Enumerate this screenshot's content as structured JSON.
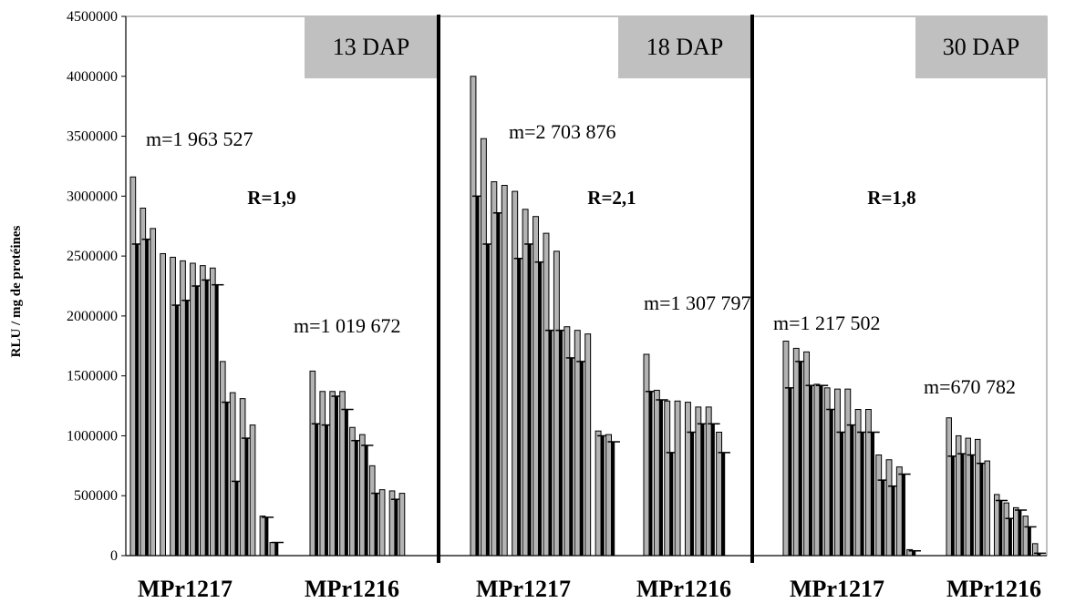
{
  "chart_data": {
    "type": "bar",
    "ylabel": "RLU / mg de protéines",
    "ylim": [
      0,
      4500000
    ],
    "yticks": [
      0,
      500000,
      1000000,
      1500000,
      2000000,
      2500000,
      3000000,
      3500000,
      4000000,
      4500000
    ],
    "colors": {
      "gray_bar": "#b3b3b3",
      "black_bar": "#000000",
      "panel_box": "#c0c0c0"
    },
    "panels": [
      {
        "label": "13 DAP",
        "ratio": "R=1,9",
        "groups": [
          {
            "name": "MPr1217",
            "mean_label": "m=1 963 527",
            "replicates": [
              {
                "a": 3160000,
                "b": 2600000
              },
              {
                "a": 2900000,
                "b": 2640000
              },
              {
                "a": 2730000
              },
              {
                "a": 2520000
              },
              {
                "a": 2490000,
                "b": 2090000
              },
              {
                "a": 2460000,
                "b": 2130000
              },
              {
                "a": 2440000,
                "b": 2250000
              },
              {
                "a": 2420000,
                "b": 2300000
              },
              {
                "a": 2400000,
                "b": 2260000
              },
              {
                "a": 1620000,
                "b": 1280000
              },
              {
                "a": 1360000,
                "b": 620000
              },
              {
                "a": 1310000,
                "b": 980000
              },
              {
                "a": 1090000
              },
              {
                "a": 330000,
                "b": 320000
              },
              {
                "a": 110000,
                "b": 110000
              }
            ]
          },
          {
            "name": "MPr1216",
            "mean_label": "m=1 019 672",
            "replicates": [
              {
                "a": 1540000,
                "b": 1100000
              },
              {
                "a": 1370000,
                "b": 1090000
              },
              {
                "a": 1370000,
                "b": 1330000
              },
              {
                "a": 1370000,
                "b": 1220000
              },
              {
                "a": 1070000,
                "b": 960000
              },
              {
                "a": 1010000,
                "b": 920000
              },
              {
                "a": 750000,
                "b": 520000
              },
              {
                "a": 550000
              },
              {
                "a": 540000,
                "b": 470000
              },
              {
                "a": 520000
              }
            ]
          }
        ]
      },
      {
        "label": "18 DAP",
        "ratio": "R=2,1",
        "groups": [
          {
            "name": "MPr1217",
            "mean_label": "m=2 703 876",
            "replicates": [
              {
                "a": 4000000,
                "b": 3000000
              },
              {
                "a": 3480000,
                "b": 2600000
              },
              {
                "a": 3120000,
                "b": 2860000
              },
              {
                "a": 3090000
              },
              {
                "a": 3040000,
                "b": 2480000
              },
              {
                "a": 2890000,
                "b": 2600000
              },
              {
                "a": 2830000,
                "b": 2450000
              },
              {
                "a": 2690000,
                "b": 1880000
              },
              {
                "a": 2540000,
                "b": 1880000
              },
              {
                "a": 1910000,
                "b": 1650000
              },
              {
                "a": 1880000,
                "b": 1620000
              },
              {
                "a": 1850000
              },
              {
                "a": 1040000,
                "b": 1000000
              },
              {
                "a": 1010000,
                "b": 950000
              }
            ]
          },
          {
            "name": "MPr1216",
            "mean_label": "m=1 307 797",
            "replicates": [
              {
                "a": 1680000,
                "b": 1370000
              },
              {
                "a": 1380000,
                "b": 1300000
              },
              {
                "a": 1290000,
                "b": 860000
              },
              {
                "a": 1290000
              },
              {
                "a": 1280000,
                "b": 1030000
              },
              {
                "a": 1240000,
                "b": 1100000
              },
              {
                "a": 1240000,
                "b": 1100000
              },
              {
                "a": 1030000,
                "b": 860000
              }
            ]
          }
        ]
      },
      {
        "label": "30 DAP",
        "ratio": "R=1,8",
        "groups": [
          {
            "name": "MPr1217",
            "mean_label": "m=1 217 502",
            "replicates": [
              {
                "a": 1790000,
                "b": 1400000
              },
              {
                "a": 1730000,
                "b": 1620000
              },
              {
                "a": 1700000,
                "b": 1420000
              },
              {
                "a": 1430000,
                "b": 1420000
              },
              {
                "a": 1400000,
                "b": 1220000
              },
              {
                "a": 1390000,
                "b": 1030000
              },
              {
                "a": 1390000,
                "b": 1090000
              },
              {
                "a": 1220000,
                "b": 1030000
              },
              {
                "a": 1220000,
                "b": 1030000
              },
              {
                "a": 840000,
                "b": 630000
              },
              {
                "a": 800000,
                "b": 580000
              },
              {
                "a": 740000,
                "b": 680000
              },
              {
                "a": 50000,
                "b": 40000
              }
            ]
          },
          {
            "name": "MPr1216",
            "mean_label": "m=670 782",
            "replicates": [
              {
                "a": 1150000,
                "b": 830000
              },
              {
                "a": 1000000,
                "b": 850000
              },
              {
                "a": 980000,
                "b": 840000
              },
              {
                "a": 970000,
                "b": 770000
              },
              {
                "a": 790000
              },
              {
                "a": 510000,
                "b": 460000
              },
              {
                "a": 440000,
                "b": 310000
              },
              {
                "a": 400000,
                "b": 380000
              },
              {
                "a": 330000,
                "b": 240000
              },
              {
                "a": 100000,
                "b": 20000
              }
            ]
          }
        ]
      }
    ]
  }
}
